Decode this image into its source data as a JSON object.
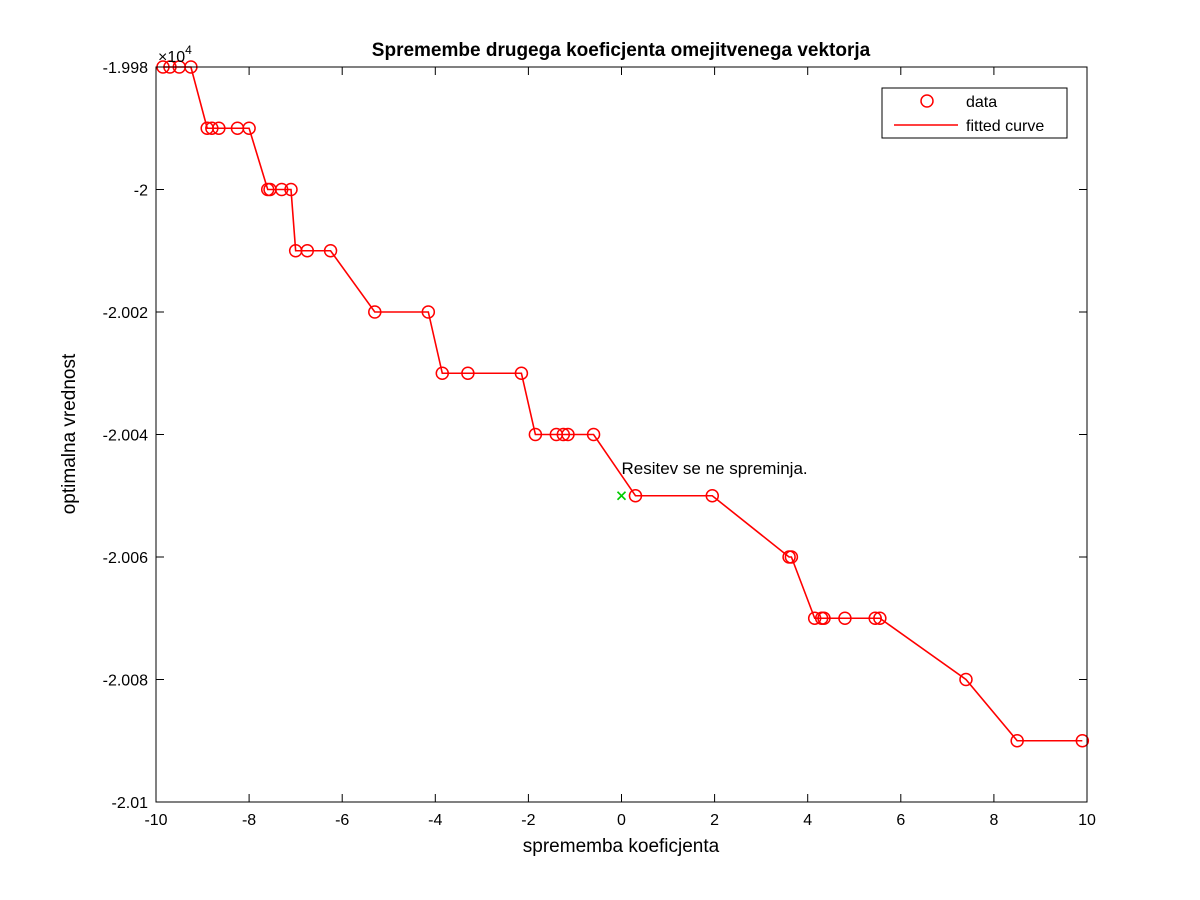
{
  "chart_data": {
    "type": "line",
    "title": "Spremembe drugega koeficjenta omejitvenega vektorja",
    "xlabel": "sprememba koeficjenta",
    "ylabel": "optimalna vrednost",
    "exponent_label": "×10",
    "exponent_power": "4",
    "xlim": [
      -10,
      10
    ],
    "ylim": [
      -20100,
      -19980
    ],
    "x_ticks": [
      -10,
      -8,
      -6,
      -4,
      -2,
      0,
      2,
      4,
      6,
      8,
      10
    ],
    "x_tick_labels": [
      "-10",
      "-8",
      "-6",
      "-4",
      "-2",
      "0",
      "2",
      "4",
      "6",
      "8",
      "10"
    ],
    "y_ticks": [
      -19980,
      -20000,
      -20020,
      -20040,
      -20060,
      -20080,
      -20100
    ],
    "y_tick_labels": [
      "-1.998",
      "-2",
      "-2.002",
      "-2.004",
      "-2.006",
      "-2.008",
      "-2.01"
    ],
    "grid": false,
    "legend_position": "top-right",
    "colors": {
      "series": "#ff0000",
      "marker_special": "#00cc00",
      "axes": "#000000"
    },
    "series": [
      {
        "name": "data",
        "style": "marker-circle",
        "x": [
          -9.85,
          -9.7,
          -9.5,
          -9.25,
          -8.9,
          -8.8,
          -8.65,
          -8.25,
          -8.0,
          -7.6,
          -7.55,
          -7.3,
          -7.1,
          -7.0,
          -6.75,
          -6.25,
          -5.3,
          -4.15,
          -3.85,
          -3.3,
          -2.15,
          -1.85,
          -1.4,
          -1.25,
          -1.15,
          -0.6,
          0.3,
          1.95,
          3.6,
          3.65,
          4.15,
          4.3,
          4.35,
          4.8,
          5.45,
          5.55,
          7.4,
          8.5,
          9.9
        ],
        "y": [
          -19980,
          -19980,
          -19980,
          -19980,
          -19990,
          -19990,
          -19990,
          -19990,
          -19990,
          -20000,
          -20000,
          -20000,
          -20000,
          -20010,
          -20010,
          -20010,
          -20020,
          -20020,
          -20030,
          -20030,
          -20030,
          -20040,
          -20040,
          -20040,
          -20040,
          -20040,
          -20050,
          -20050,
          -20060,
          -20060,
          -20070,
          -20070,
          -20070,
          -20070,
          -20070,
          -20070,
          -20080,
          -20090,
          -20090
        ]
      },
      {
        "name": "fitted curve",
        "style": "line",
        "x": [
          -9.85,
          -9.7,
          -9.5,
          -9.25,
          -8.9,
          -8.8,
          -8.65,
          -8.25,
          -8.0,
          -7.6,
          -7.55,
          -7.3,
          -7.1,
          -7.0,
          -6.75,
          -6.25,
          -5.3,
          -4.15,
          -3.85,
          -3.3,
          -2.15,
          -1.85,
          -1.4,
          -1.25,
          -1.15,
          -0.6,
          0.3,
          1.95,
          3.6,
          3.65,
          4.15,
          4.3,
          4.35,
          4.8,
          5.45,
          5.55,
          7.4,
          8.5,
          9.9
        ],
        "y": [
          -19980,
          -19980,
          -19980,
          -19980,
          -19990,
          -19990,
          -19990,
          -19990,
          -19990,
          -20000,
          -20000,
          -20000,
          -20000,
          -20010,
          -20010,
          -20010,
          -20020,
          -20020,
          -20030,
          -20030,
          -20030,
          -20040,
          -20040,
          -20040,
          -20040,
          -20040,
          -20050,
          -20050,
          -20060,
          -20060,
          -20070,
          -20070,
          -20070,
          -20070,
          -20070,
          -20070,
          -20080,
          -20090,
          -20090
        ]
      }
    ],
    "annotations": [
      {
        "marker": "x",
        "x": 0,
        "y": -20050,
        "text": "Resitev se ne spreminja."
      }
    ]
  }
}
